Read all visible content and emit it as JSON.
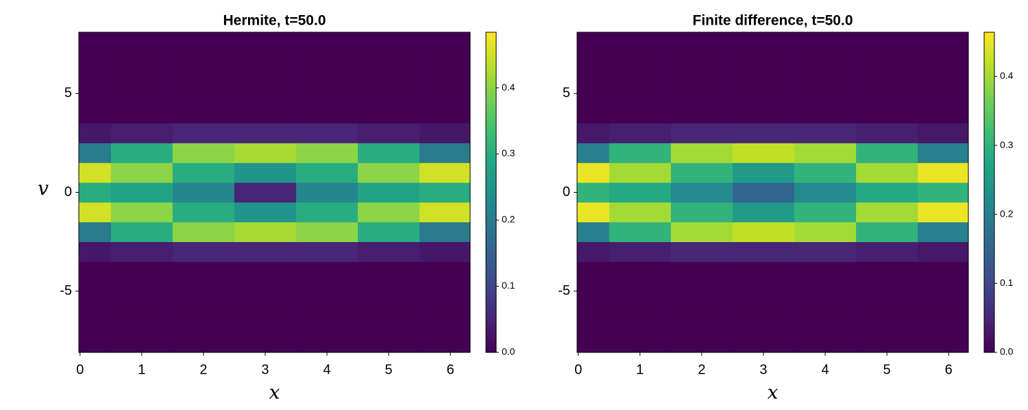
{
  "chart_data": [
    {
      "type": "heatmap",
      "title": "Hermite, t=50.0",
      "xlabel": "x",
      "ylabel": "v",
      "colormap": "viridis",
      "x": [
        0,
        1,
        2,
        3,
        4,
        5,
        6
      ],
      "y": [
        -8,
        -7,
        -6,
        -5,
        -4,
        -3,
        -2,
        -1,
        0,
        1,
        2,
        3,
        4,
        5,
        6,
        7,
        8
      ],
      "z": [
        [
          0,
          0,
          0,
          0,
          0,
          0,
          0
        ],
        [
          0,
          0,
          0,
          0,
          0,
          0,
          0
        ],
        [
          0,
          0,
          0,
          0,
          0,
          0,
          0
        ],
        [
          0,
          0,
          0,
          0,
          0,
          0,
          0
        ],
        [
          0,
          0,
          0,
          0,
          0,
          0,
          0
        ],
        [
          0.03,
          0.04,
          0.05,
          0.05,
          0.05,
          0.04,
          0.03
        ],
        [
          0.2,
          0.3,
          0.4,
          0.42,
          0.4,
          0.3,
          0.2
        ],
        [
          0.45,
          0.4,
          0.3,
          0.25,
          0.3,
          0.4,
          0.45
        ],
        [
          0.3,
          0.28,
          0.22,
          0.05,
          0.22,
          0.28,
          0.3
        ],
        [
          0.45,
          0.4,
          0.3,
          0.25,
          0.3,
          0.4,
          0.45
        ],
        [
          0.2,
          0.3,
          0.4,
          0.42,
          0.4,
          0.3,
          0.2
        ],
        [
          0.03,
          0.04,
          0.05,
          0.05,
          0.05,
          0.04,
          0.03
        ],
        [
          0,
          0,
          0,
          0,
          0,
          0,
          0
        ],
        [
          0,
          0,
          0,
          0,
          0,
          0,
          0
        ],
        [
          0,
          0,
          0,
          0,
          0,
          0,
          0
        ],
        [
          0,
          0,
          0,
          0,
          0,
          0,
          0
        ],
        [
          0,
          0,
          0,
          0,
          0,
          0,
          0
        ]
      ],
      "xlim": [
        -0.02,
        6.32
      ],
      "ylim": [
        -8.1,
        8.1
      ],
      "xticks": [
        0,
        1,
        2,
        3,
        4,
        5,
        6
      ],
      "yticks": [
        -5,
        0,
        5
      ],
      "colorbar": {
        "clim": [
          0,
          0.484
        ],
        "ticks": [
          {
            "value": 0,
            "label": "0.0"
          },
          {
            "value": 0.1,
            "label": "0.1"
          },
          {
            "value": 0.2,
            "label": "0.2"
          },
          {
            "value": 0.3,
            "label": "0.3"
          },
          {
            "value": 0.4,
            "label": "0.4"
          }
        ]
      }
    },
    {
      "type": "heatmap",
      "title": "Finite difference, t=50.0",
      "xlabel": "x",
      "colormap": "viridis",
      "x": [
        0,
        1,
        2,
        3,
        4,
        5,
        6
      ],
      "y": [
        -8,
        -7,
        -6,
        -5,
        -4,
        -3,
        -2,
        -1,
        0,
        1,
        2,
        3,
        4,
        5,
        6,
        7,
        8
      ],
      "z": [
        [
          0,
          0,
          0,
          0,
          0,
          0,
          0
        ],
        [
          0,
          0,
          0,
          0,
          0,
          0,
          0
        ],
        [
          0,
          0,
          0,
          0,
          0,
          0,
          0
        ],
        [
          0,
          0,
          0,
          0,
          0,
          0,
          0
        ],
        [
          0,
          0,
          0,
          0,
          0,
          0,
          0
        ],
        [
          0.03,
          0.04,
          0.05,
          0.05,
          0.05,
          0.04,
          0.03
        ],
        [
          0.2,
          0.3,
          0.4,
          0.42,
          0.4,
          0.3,
          0.2
        ],
        [
          0.45,
          0.4,
          0.3,
          0.25,
          0.3,
          0.4,
          0.45
        ],
        [
          0.3,
          0.28,
          0.22,
          0.15,
          0.22,
          0.28,
          0.3
        ],
        [
          0.45,
          0.4,
          0.3,
          0.25,
          0.3,
          0.4,
          0.45
        ],
        [
          0.2,
          0.3,
          0.4,
          0.42,
          0.4,
          0.3,
          0.2
        ],
        [
          0.03,
          0.04,
          0.05,
          0.05,
          0.05,
          0.04,
          0.03
        ],
        [
          0,
          0,
          0,
          0,
          0,
          0,
          0
        ],
        [
          0,
          0,
          0,
          0,
          0,
          0,
          0
        ],
        [
          0,
          0,
          0,
          0,
          0,
          0,
          0
        ],
        [
          0,
          0,
          0,
          0,
          0,
          0,
          0
        ],
        [
          0,
          0,
          0,
          0,
          0,
          0,
          0
        ]
      ],
      "xlim": [
        -0.02,
        6.32
      ],
      "ylim": [
        -8.1,
        8.1
      ],
      "xticks": [
        0,
        1,
        2,
        3,
        4,
        5,
        6
      ],
      "yticks": [
        -5,
        0,
        5
      ],
      "colorbar": {
        "clim": [
          0,
          0.464
        ],
        "ticks": [
          {
            "value": 0,
            "label": "0.0"
          },
          {
            "value": 0.1,
            "label": "0.1"
          },
          {
            "value": 0.2,
            "label": "0.2"
          },
          {
            "value": 0.3,
            "label": "0.3"
          },
          {
            "value": 0.4,
            "label": "0.4"
          }
        ]
      }
    }
  ]
}
